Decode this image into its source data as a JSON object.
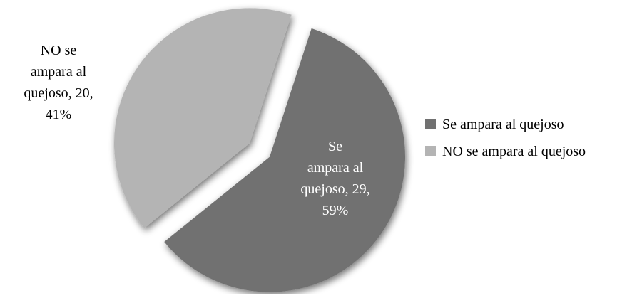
{
  "chart_data": {
    "type": "pie",
    "title": "",
    "slices": [
      {
        "name": "Se ampara al quejoso",
        "value": 29,
        "percent": "59%",
        "label_lines": [
          "Se",
          "ampara al",
          "quejoso, 29,",
          "59%"
        ],
        "color": "#717171",
        "exploded": true
      },
      {
        "name": "NO se ampara al quejoso",
        "value": 20,
        "percent": "41%",
        "label_lines": [
          "NO se",
          "ampara al",
          "quejoso, 20,",
          "41%"
        ],
        "color": "#b4b4b4",
        "exploded": true
      }
    ],
    "legend": {
      "position": "right",
      "items": [
        "Se ampara al quejoso",
        "NO se ampara al quejoso"
      ]
    }
  }
}
